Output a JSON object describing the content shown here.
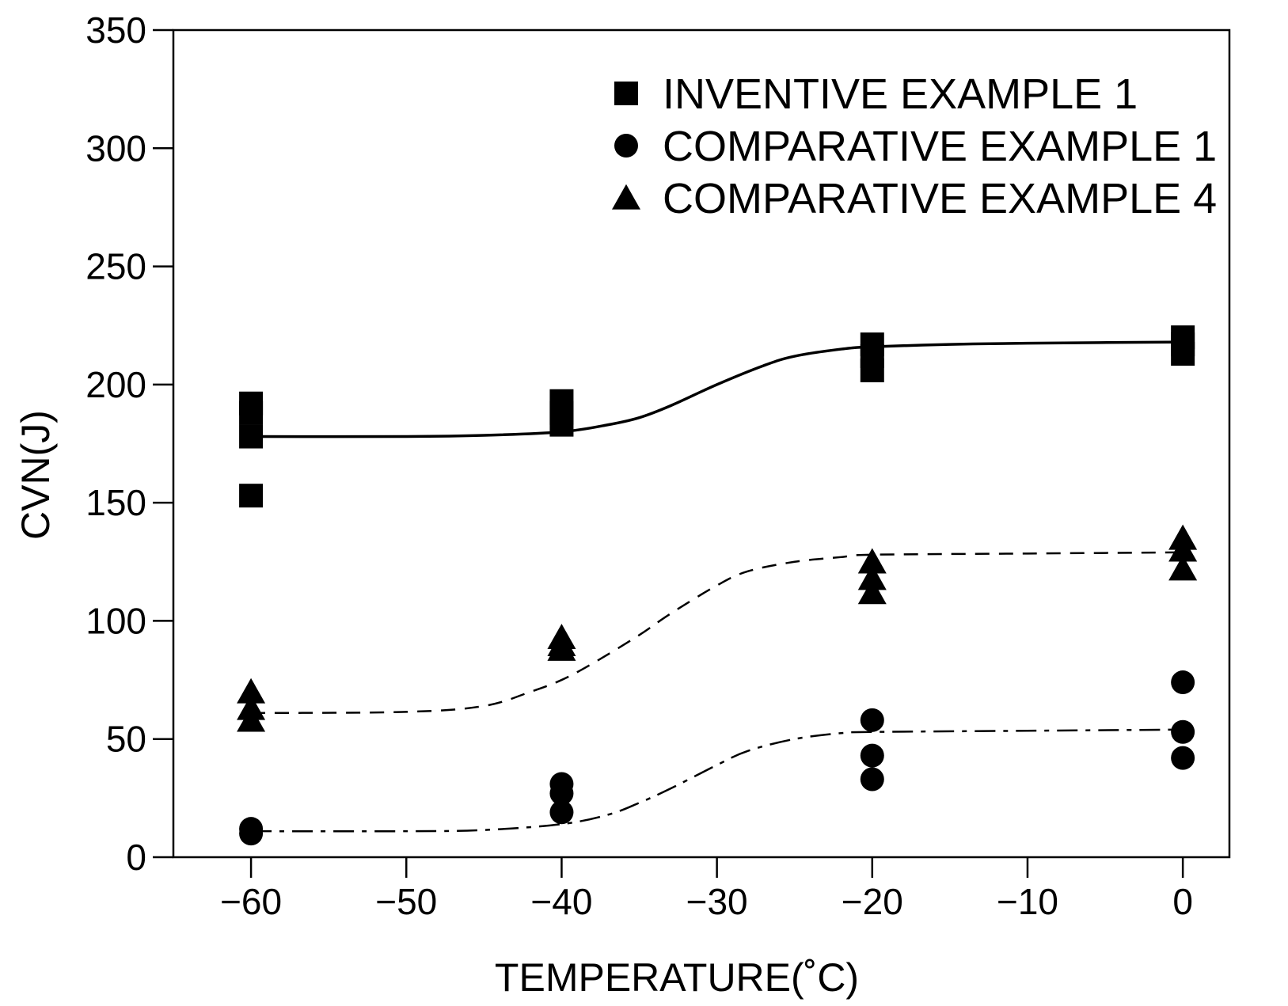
{
  "chart_data": {
    "type": "scatter",
    "xlabel": "TEMPERATURE(˚C)",
    "ylabel": "CVN(J)",
    "xlim": [
      -65,
      3
    ],
    "ylim": [
      0,
      350
    ],
    "x_ticks": [
      "−60",
      "−50",
      "−40",
      "−30",
      "−20",
      "−10",
      "0"
    ],
    "x_tick_values": [
      -60,
      -50,
      -40,
      -30,
      -20,
      -10,
      0
    ],
    "y_ticks": [
      "0",
      "50",
      "100",
      "150",
      "200",
      "250",
      "300",
      "350"
    ],
    "y_tick_values": [
      0,
      50,
      100,
      150,
      200,
      250,
      300,
      350
    ],
    "grid": false,
    "legend_position": "top-right",
    "series": [
      {
        "name": "INVENTIVE EXAMPLE 1",
        "marker": "square",
        "points": [
          [
            -60,
            192
          ],
          [
            -60,
            188
          ],
          [
            -60,
            178
          ],
          [
            -60,
            153
          ],
          [
            -40,
            193
          ],
          [
            -40,
            188
          ],
          [
            -40,
            183
          ],
          [
            -20,
            217
          ],
          [
            -20,
            212
          ],
          [
            -20,
            206
          ],
          [
            0,
            220
          ],
          [
            0,
            217
          ],
          [
            0,
            213
          ]
        ],
        "fit": [
          [
            -60,
            178
          ],
          [
            -50,
            178
          ],
          [
            -45,
            178.5
          ],
          [
            -40,
            180
          ],
          [
            -37,
            183
          ],
          [
            -35,
            186
          ],
          [
            -33,
            191
          ],
          [
            -30,
            200
          ],
          [
            -27,
            208
          ],
          [
            -25,
            212
          ],
          [
            -22,
            215
          ],
          [
            -20,
            216
          ],
          [
            -15,
            217
          ],
          [
            -10,
            217.5
          ],
          [
            0,
            218
          ]
        ],
        "fit_style": "solid"
      },
      {
        "name": "COMPARATIVE EXAMPLE 1",
        "marker": "circle",
        "points": [
          [
            -60,
            12
          ],
          [
            -60,
            10
          ],
          [
            -40,
            31
          ],
          [
            -40,
            27
          ],
          [
            -40,
            19
          ],
          [
            -20,
            58
          ],
          [
            -20,
            43
          ],
          [
            -20,
            33
          ],
          [
            0,
            74
          ],
          [
            0,
            53
          ],
          [
            0,
            42
          ]
        ],
        "fit": [
          [
            -60,
            11
          ],
          [
            -50,
            11
          ],
          [
            -45,
            11.5
          ],
          [
            -40,
            14
          ],
          [
            -37,
            18
          ],
          [
            -35,
            23
          ],
          [
            -33,
            29
          ],
          [
            -30,
            39
          ],
          [
            -28,
            45
          ],
          [
            -25,
            50
          ],
          [
            -22,
            52.5
          ],
          [
            -20,
            53
          ],
          [
            -10,
            53.5
          ],
          [
            0,
            54
          ]
        ],
        "fit_style": "dash-dot"
      },
      {
        "name": "COMPARATIVE EXAMPLE 4",
        "marker": "triangle",
        "points": [
          [
            -60,
            70
          ],
          [
            -60,
            63
          ],
          [
            -60,
            58
          ],
          [
            -40,
            93
          ],
          [
            -40,
            90
          ],
          [
            -40,
            88
          ],
          [
            -20,
            125
          ],
          [
            -20,
            118
          ],
          [
            -20,
            112
          ],
          [
            0,
            135
          ],
          [
            0,
            130
          ],
          [
            0,
            122
          ]
        ],
        "fit": [
          [
            -60,
            61
          ],
          [
            -50,
            61.5
          ],
          [
            -45,
            64
          ],
          [
            -42,
            70
          ],
          [
            -40,
            75
          ],
          [
            -38,
            82
          ],
          [
            -35,
            94
          ],
          [
            -33,
            103
          ],
          [
            -30,
            115
          ],
          [
            -28,
            121
          ],
          [
            -25,
            125
          ],
          [
            -22,
            127
          ],
          [
            -20,
            128
          ],
          [
            -10,
            128.5
          ],
          [
            0,
            129
          ]
        ],
        "fit_style": "dashed"
      }
    ]
  }
}
